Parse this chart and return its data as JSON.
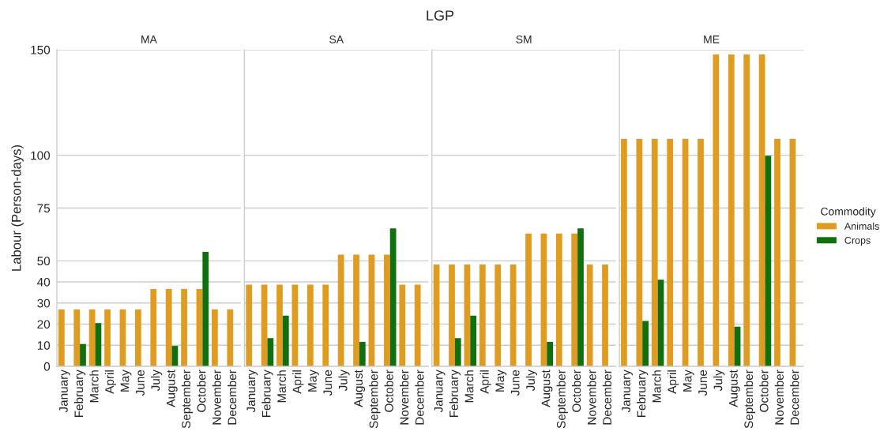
{
  "chart_data": [
    {
      "type": "bar",
      "title": "MA",
      "ylabel": "Labour (Person-days)",
      "annotations": [
        "LGP"
      ],
      "legend_title": "Commodity",
      "legend": "right",
      "categories": [
        "January",
        "February",
        "March",
        "April",
        "May",
        "June",
        "July",
        "August",
        "September",
        "October",
        "November",
        "December"
      ],
      "series": [
        {
          "name": "Animals",
          "color": "#df9c20",
          "values": [
            27,
            27,
            27,
            27,
            27,
            27,
            36.7,
            36.7,
            36.7,
            36.7,
            27,
            27
          ]
        },
        {
          "name": "Crops",
          "color": "#107010",
          "values": [
            null,
            10.6,
            20.5,
            null,
            null,
            null,
            null,
            9.7,
            null,
            54.2,
            null,
            null
          ]
        }
      ],
      "ylim": [
        0,
        150
      ],
      "yticks": [
        0,
        10,
        20,
        30,
        40,
        50,
        75,
        100,
        150
      ],
      "grid": "y"
    },
    {
      "type": "bar",
      "title": "SA",
      "categories": [
        "January",
        "February",
        "March",
        "April",
        "May",
        "June",
        "July",
        "August",
        "September",
        "October",
        "November",
        "December"
      ],
      "series": [
        {
          "color": "#df9c20",
          "values": [
            38.7,
            38.7,
            38.7,
            38.7,
            38.7,
            38.7,
            52.9,
            52.9,
            52.9,
            52.9,
            38.7,
            38.7
          ]
        },
        {
          "color": "#107010",
          "values": [
            null,
            13.4,
            24.0,
            null,
            null,
            null,
            null,
            11.6,
            null,
            65.4,
            null,
            null
          ]
        }
      ],
      "ylim": [
        0,
        150
      ],
      "yticks": [
        0,
        10,
        20,
        30,
        40,
        50,
        75,
        100,
        150
      ],
      "grid": "y",
      "tick_labels": "x"
    },
    {
      "type": "bar",
      "title": "SM",
      "categories": [
        "January",
        "February",
        "March",
        "April",
        "May",
        "June",
        "July",
        "August",
        "September",
        "October",
        "November",
        "December"
      ],
      "series": [
        {
          "color": "#df9c20",
          "values": [
            48.3,
            48.3,
            48.3,
            48.3,
            48.3,
            48.3,
            62.9,
            62.9,
            62.9,
            62.9,
            48.3,
            48.3
          ]
        },
        {
          "color": "#107010",
          "values": [
            null,
            13.4,
            24.0,
            null,
            null,
            null,
            null,
            11.6,
            null,
            65.4,
            null,
            null
          ]
        }
      ],
      "ylim": [
        0,
        150
      ],
      "yticks": [
        0,
        10,
        20,
        30,
        40,
        50,
        75,
        100,
        150
      ],
      "grid": "y",
      "tick_labels": "x"
    },
    {
      "type": "bar",
      "title": "ME",
      "categories": [
        "January",
        "February",
        "March",
        "April",
        "May",
        "June",
        "July",
        "August",
        "September",
        "October",
        "November",
        "December"
      ],
      "series": [
        {
          "color": "#df9c20",
          "values": [
            107.8,
            107.8,
            107.8,
            107.8,
            107.8,
            107.8,
            147.8,
            147.8,
            147.8,
            147.8,
            107.8,
            107.8
          ]
        },
        {
          "color": "#107010",
          "values": [
            null,
            21.5,
            41.1,
            null,
            null,
            null,
            null,
            18.8,
            null,
            99.8,
            null,
            null
          ]
        }
      ],
      "ylim": [
        0,
        150
      ],
      "yticks": [
        0,
        10,
        20,
        30,
        40,
        50,
        75,
        100,
        150
      ],
      "grid": "y",
      "tick_labels": "x"
    }
  ]
}
